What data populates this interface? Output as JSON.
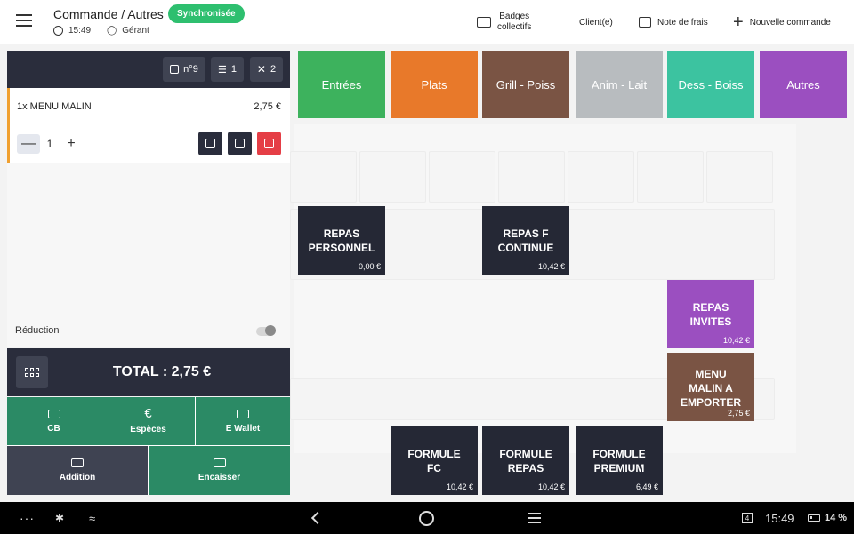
{
  "header": {
    "title": "Commande / Autres",
    "sync_badge": "Synchronisée",
    "time": "15:49",
    "user": "Gérant",
    "actions": {
      "badges": "Badges collectifs",
      "badges_line1": "Badges",
      "badges_line2": "collectifs",
      "client": "Client(e)",
      "note": "Note de frais",
      "new_order": "Nouvelle commande"
    }
  },
  "order": {
    "ticket": "n°9",
    "lines_count": "1",
    "covers_count": "2",
    "line": {
      "name": "1x MENU MALIN",
      "price": "2,75 €",
      "qty": "1"
    },
    "reduction_label": "Réduction",
    "total": "TOTAL : 2,75 €"
  },
  "payment": {
    "cb": "CB",
    "especes": "Espèces",
    "ewallet": "E Wallet",
    "addition": "Addition",
    "encaisser": "Encaisser",
    "euro_symbol": "€"
  },
  "categories": [
    {
      "label": "Entrées",
      "color": "#3db25d"
    },
    {
      "label": "Plats",
      "color": "#e8792a"
    },
    {
      "label": "Grill - Poiss",
      "color": "#7a5444"
    },
    {
      "label": "Anim - Lait",
      "color": "#b8bcbf"
    },
    {
      "label": "Dess - Boiss",
      "color": "#3cc3a0"
    },
    {
      "label": "Autres",
      "color": "#9b4fc0"
    }
  ],
  "products": {
    "repas_personnel": {
      "name": "REPAS PERSONNEL",
      "line1": "REPAS",
      "line2": "PERSONNEL",
      "price": "0,00 €"
    },
    "repas_continue": {
      "name": "REPAS F CONTINUE",
      "line1": "REPAS F",
      "line2": "CONTINUE",
      "price": "10,42 €"
    },
    "repas_invites": {
      "name": "REPAS INVITES",
      "line1": "REPAS",
      "line2": "INVITES",
      "price": "10,42 €"
    },
    "menu_emporter": {
      "name": "MENU MALIN A EMPORTER",
      "line1": "MENU",
      "line2": "MALIN A",
      "line3": "EMPORTER",
      "price": "2,75 €"
    },
    "formule_fc": {
      "name": "FORMULE FC",
      "line1": "FORMULE",
      "line2": "FC",
      "price": "10,42 €"
    },
    "formule_repas": {
      "name": "FORMULE REPAS",
      "line1": "FORMULE",
      "line2": "REPAS",
      "price": "10,42 €"
    },
    "formule_premium": {
      "name": "FORMULE PREMIUM",
      "line1": "FORMULE",
      "line2": "PREMIUM",
      "price": "6,49 €"
    }
  },
  "colors": {
    "dark_product": "#252835",
    "purple_product": "#9b4fc0",
    "brown_product": "#7a5444",
    "pay_green": "#2b8a65",
    "sync_green": "#2ebf6f"
  },
  "system_bar": {
    "dots": "···",
    "notif_count": "4",
    "time": "15:49",
    "battery": "14 %"
  }
}
